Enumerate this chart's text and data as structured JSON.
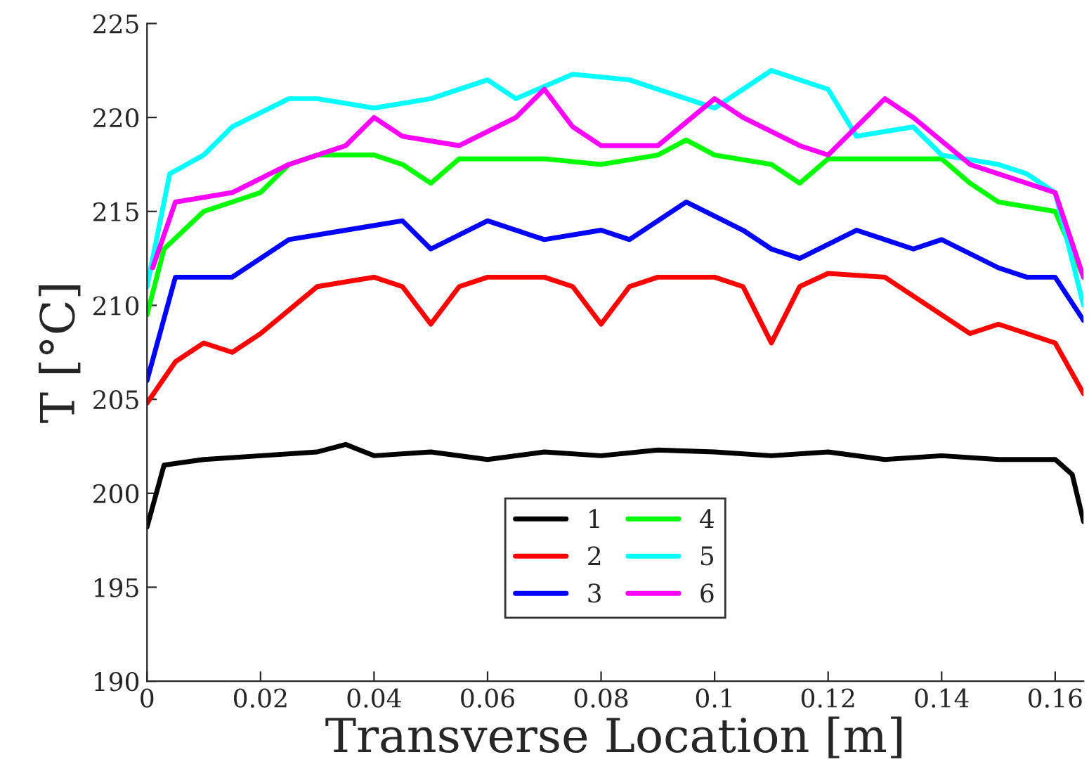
{
  "chart_data": {
    "type": "line",
    "xlabel": "Transverse Location [m]",
    "ylabel": "T [°C]",
    "xlim": [
      0,
      0.165
    ],
    "ylim": [
      190,
      225
    ],
    "xticks": [
      0,
      0.02,
      0.04,
      0.06,
      0.08,
      0.1,
      0.12,
      0.14,
      0.16
    ],
    "yticks": [
      190,
      195,
      200,
      205,
      210,
      215,
      220,
      225
    ],
    "grid": false,
    "legend": "bottom",
    "line_style": "solid",
    "marker": "none",
    "series": [
      {
        "name": "1",
        "color": "#000000",
        "x": [
          0,
          0.003,
          0.01,
          0.02,
          0.03,
          0.035,
          0.04,
          0.05,
          0.06,
          0.07,
          0.08,
          0.09,
          0.1,
          0.11,
          0.12,
          0.13,
          0.14,
          0.15,
          0.16,
          0.163,
          0.165
        ],
        "values": [
          198.2,
          201.5,
          201.8,
          202,
          202.2,
          202.6,
          202,
          202.2,
          201.8,
          202.2,
          202,
          202.3,
          202.2,
          202,
          202.2,
          201.8,
          202,
          201.8,
          201.8,
          201,
          198.5
        ]
      },
      {
        "name": "2",
        "color": "#ff0000",
        "x": [
          0,
          0.005,
          0.01,
          0.015,
          0.02,
          0.03,
          0.04,
          0.045,
          0.05,
          0.055,
          0.06,
          0.07,
          0.075,
          0.08,
          0.085,
          0.09,
          0.1,
          0.105,
          0.11,
          0.115,
          0.12,
          0.13,
          0.135,
          0.145,
          0.15,
          0.155,
          0.16,
          0.165
        ],
        "values": [
          204.8,
          207,
          208,
          207.5,
          208.5,
          211,
          211.5,
          211,
          209,
          211,
          211.5,
          211.5,
          211,
          209,
          211,
          211.5,
          211.5,
          211,
          208,
          211,
          211.7,
          211.5,
          210.5,
          208.5,
          209,
          208.5,
          208,
          205.3
        ]
      },
      {
        "name": "3",
        "color": "#0000ff",
        "x": [
          0,
          0.005,
          0.015,
          0.025,
          0.035,
          0.045,
          0.05,
          0.06,
          0.07,
          0.08,
          0.085,
          0.095,
          0.105,
          0.11,
          0.115,
          0.125,
          0.135,
          0.14,
          0.15,
          0.155,
          0.16,
          0.165
        ],
        "values": [
          206,
          211.5,
          211.5,
          213.5,
          214,
          214.5,
          213,
          214.5,
          213.5,
          214,
          213.5,
          215.5,
          214,
          213,
          212.5,
          214,
          213,
          213.5,
          212,
          211.5,
          211.5,
          209.2
        ]
      },
      {
        "name": "4",
        "color": "#00ff00",
        "x": [
          0,
          0.003,
          0.01,
          0.02,
          0.025,
          0.03,
          0.04,
          0.045,
          0.05,
          0.055,
          0.07,
          0.08,
          0.09,
          0.095,
          0.1,
          0.11,
          0.115,
          0.12,
          0.14,
          0.145,
          0.15,
          0.16,
          0.165
        ],
        "values": [
          209.5,
          213,
          215,
          216,
          217.5,
          218,
          218,
          217.5,
          216.5,
          217.8,
          217.8,
          217.5,
          218,
          218.8,
          218,
          217.5,
          216.5,
          217.8,
          217.8,
          216.5,
          215.5,
          215,
          211.5
        ]
      },
      {
        "name": "5",
        "color": "#00ffff",
        "x": [
          0,
          0.004,
          0.01,
          0.015,
          0.025,
          0.03,
          0.04,
          0.05,
          0.06,
          0.065,
          0.075,
          0.085,
          0.09,
          0.1,
          0.11,
          0.12,
          0.125,
          0.135,
          0.14,
          0.15,
          0.155,
          0.16,
          0.165
        ],
        "values": [
          211,
          217,
          218,
          219.5,
          221,
          221,
          220.5,
          221,
          222,
          221,
          222.3,
          222,
          221.5,
          220.5,
          222.5,
          221.5,
          219,
          219.5,
          218,
          217.5,
          217,
          216,
          210
        ]
      },
      {
        "name": "6",
        "color": "#ff00ff",
        "x": [
          0.001,
          0.005,
          0.015,
          0.025,
          0.035,
          0.04,
          0.045,
          0.055,
          0.065,
          0.07,
          0.075,
          0.08,
          0.09,
          0.1,
          0.105,
          0.115,
          0.12,
          0.13,
          0.135,
          0.145,
          0.16,
          0.165
        ],
        "values": [
          212,
          215.5,
          216,
          217.5,
          218.5,
          220,
          219,
          218.5,
          220,
          221.5,
          219.5,
          218.5,
          218.5,
          221,
          220,
          218.5,
          218,
          221,
          220,
          217.5,
          216,
          211.5
        ]
      }
    ]
  }
}
